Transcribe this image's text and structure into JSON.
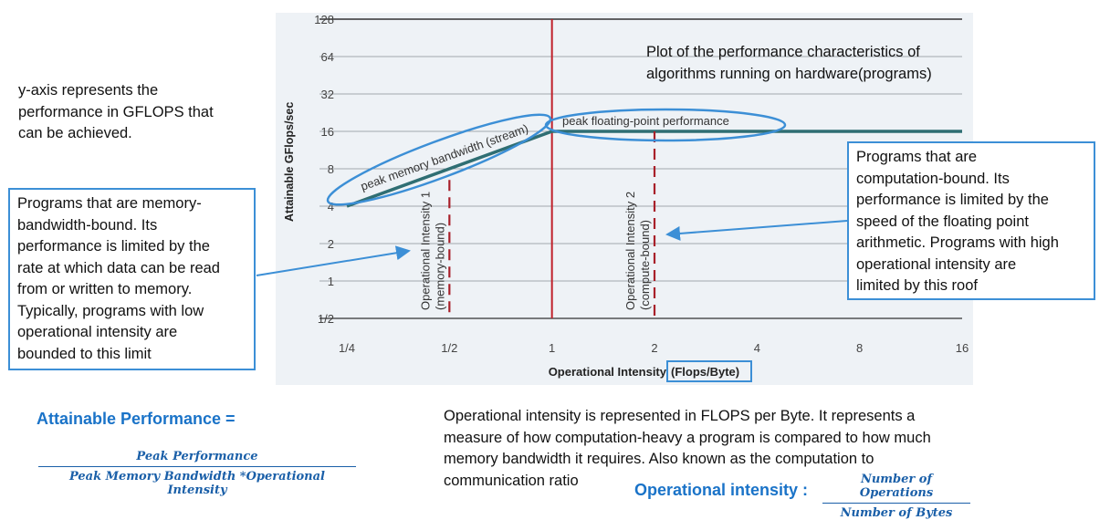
{
  "y_axis_note": "y-axis represents the\nperformance in GFLOPS that\ncan be achieved.",
  "plot_description": "Plot of the performance characteristics of\nalgorithms running on hardware(programs)",
  "memory_bound_callout": "Programs that are memory-\nbandwidth-bound. Its\nperformance is limited by the\nrate at which data can be read\nfrom or written to memory.\nTypically, programs with low\noperational intensity are\nbounded to this limit",
  "compute_bound_callout": "Programs that are\ncomputation-bound. Its\nperformance is limited by the\nspeed of the floating point\narithmetic. Programs with high\noperational intensity are\nlimited by this roof",
  "attainable_performance": {
    "label": "Attainable Performance =",
    "numerator": "Peak Performance",
    "denominator": "Peak Memory Bandwidth  *Operational Intensity"
  },
  "operational_intensity_description": "Operational intensity is represented in FLOPS per Byte. It represents a\nmeasure of how computation-heavy a program is compared to how much\nmemory bandwidth it requires. Also known as the computation to\ncommunication ratio",
  "operational_intensity_formula": {
    "label": "Operational intensity :",
    "numerator": "Number of Operations",
    "denominator": "Number of Bytes"
  },
  "chart_data": {
    "type": "line",
    "xlabel_main": "Operational Intensity",
    "xlabel_unit": "(Flops/Byte)",
    "ylabel": "Attainable GFlops/sec",
    "x_ticks": [
      "1/4",
      "1/2",
      "1",
      "2",
      "4",
      "8",
      "16"
    ],
    "y_ticks": [
      "1/2",
      "1",
      "2",
      "4",
      "8",
      "16",
      "32",
      "64",
      "128"
    ],
    "x_scale": "log2",
    "y_scale": "log2",
    "xlim": [
      0.25,
      16
    ],
    "ylim": [
      0.5,
      128
    ],
    "roofline": [
      [
        0.25,
        4
      ],
      [
        1,
        16
      ],
      [
        16,
        16
      ]
    ],
    "ridge_x": 1,
    "memory_roof_label": "peak memory bandwidth (stream)",
    "compute_roof_label": "peak floating-point performance",
    "operational_intensities": [
      {
        "x": 0.5,
        "label": "Operational Intensity 1",
        "sublabel": "(memory-bound)"
      },
      {
        "x": 2,
        "label": "Operational Intensity 2",
        "sublabel": "(compute-bound)"
      }
    ],
    "colors": {
      "roof": "#2f6e73",
      "ridge": "#c0202a",
      "dashed": "#a8202a",
      "highlight": "#3c8fd6"
    }
  }
}
